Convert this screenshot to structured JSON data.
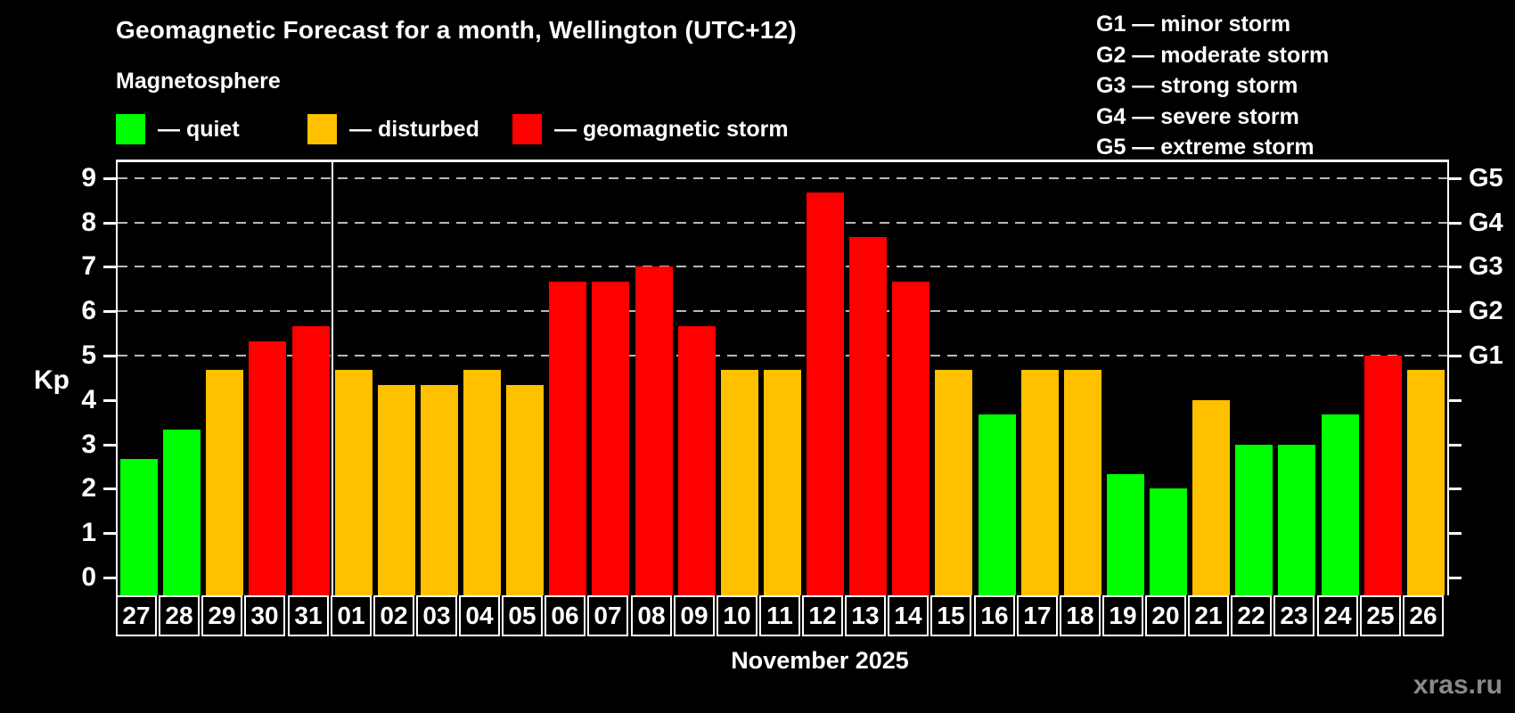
{
  "header": {
    "title": "Geomagnetic Forecast for a month, Wellington (UTC+12)",
    "subtitle": "Magnetosphere"
  },
  "legend": {
    "items": [
      {
        "key": "quiet",
        "label": "— quiet",
        "color": "#00ff00"
      },
      {
        "key": "disturbed",
        "label": "— disturbed",
        "color": "#ffc000"
      },
      {
        "key": "storm",
        "label": "— geomagnetic storm",
        "color": "#ff0000"
      }
    ]
  },
  "storm_scale_legend": {
    "lines": [
      "G1 — minor storm",
      "G2 — moderate storm",
      "G3 — strong storm",
      "G4 — severe storm",
      "G5 — extreme storm"
    ]
  },
  "chart_data": {
    "type": "bar",
    "title": "Geomagnetic Forecast for a month, Wellington (UTC+12)",
    "xlabel": "November 2025",
    "ylabel": "Kp",
    "ylim": [
      0,
      9
    ],
    "y_ticks": [
      0,
      1,
      2,
      3,
      4,
      5,
      6,
      7,
      8,
      9
    ],
    "gridlines_at": [
      5,
      6,
      7,
      8,
      9
    ],
    "grid": "dashed, only at storm levels G1–G5",
    "legend_position": "top",
    "separator_after_index": 4,
    "categories": [
      "27",
      "28",
      "29",
      "30",
      "31",
      "01",
      "02",
      "03",
      "04",
      "05",
      "06",
      "07",
      "08",
      "09",
      "10",
      "11",
      "12",
      "13",
      "14",
      "15",
      "16",
      "17",
      "18",
      "19",
      "20",
      "21",
      "22",
      "23",
      "24",
      "25",
      "26"
    ],
    "values": [
      2.67,
      3.33,
      4.67,
      5.33,
      5.67,
      4.67,
      4.33,
      4.33,
      4.67,
      4.33,
      6.67,
      6.67,
      7.0,
      5.67,
      4.67,
      4.67,
      8.67,
      7.67,
      6.67,
      4.67,
      3.67,
      4.67,
      4.67,
      2.33,
      2.0,
      4.0,
      3.0,
      3.0,
      3.67,
      5.0,
      4.67
    ],
    "statuses": [
      "quiet",
      "quiet",
      "disturbed",
      "storm",
      "storm",
      "disturbed",
      "disturbed",
      "disturbed",
      "disturbed",
      "disturbed",
      "storm",
      "storm",
      "storm",
      "storm",
      "disturbed",
      "disturbed",
      "storm",
      "storm",
      "storm",
      "disturbed",
      "quiet",
      "disturbed",
      "disturbed",
      "quiet",
      "quiet",
      "disturbed",
      "quiet",
      "quiet",
      "quiet",
      "storm",
      "disturbed"
    ],
    "colors": {
      "quiet": "#00ff00",
      "disturbed": "#ffc000",
      "storm": "#ff0000"
    },
    "right_axis_labels": [
      {
        "label": "G1",
        "kp": 5
      },
      {
        "label": "G2",
        "kp": 6
      },
      {
        "label": "G3",
        "kp": 7
      },
      {
        "label": "G4",
        "kp": 8
      },
      {
        "label": "G5",
        "kp": 9
      }
    ]
  },
  "footer": {
    "month_label": "November 2025",
    "watermark": "xras.ru"
  }
}
